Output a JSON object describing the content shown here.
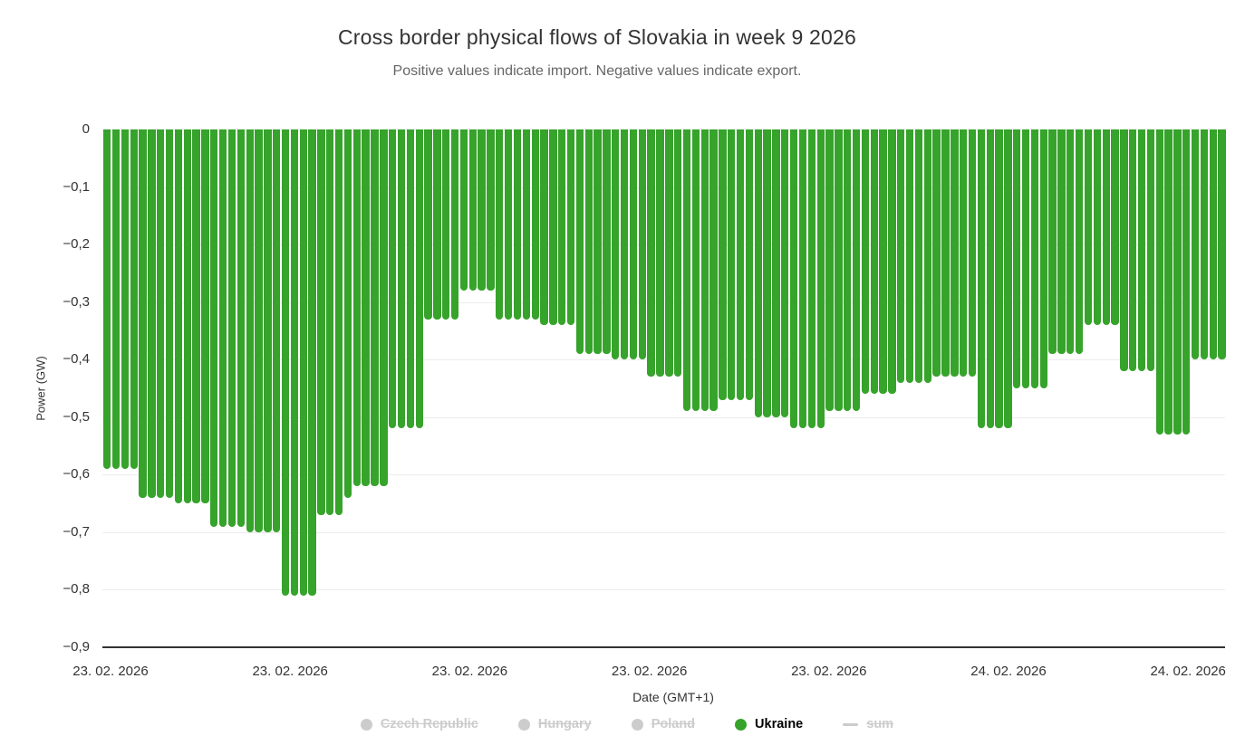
{
  "chart": {
    "title": "Cross border physical flows of Slovakia in week 9 2026",
    "subtitle": "Positive values indicate import. Negative values indicate export.",
    "y_axis_title": "Power (GW)",
    "x_axis_title": "Date (GMT+1)"
  },
  "chart_data": {
    "type": "bar",
    "title": "Cross border physical flows of Slovakia in week 9 2026",
    "subtitle": "Positive values indicate import. Negative values indicate export.",
    "xlabel": "Date (GMT+1)",
    "ylabel": "Power (GW)",
    "ylim": [
      -0.9,
      0
    ],
    "grid": true,
    "legend_position": "bottom",
    "y_tick_labels": [
      "0",
      "−0,1",
      "−0,2",
      "−0,3",
      "−0,4",
      "−0,5",
      "−0,6",
      "−0,7",
      "−0,8",
      "−0,9"
    ],
    "x_tick_labels": [
      "23. 02. 2026",
      "23. 02. 2026",
      "23. 02. 2026",
      "23. 02. 2026",
      "23. 02. 2026",
      "24. 02. 2026",
      "24. 02. 2026"
    ],
    "series": [
      {
        "name": "Ukraine",
        "color": "#36a32b",
        "unit": "GW",
        "values": [
          -0.59,
          -0.59,
          -0.59,
          -0.59,
          -0.64,
          -0.64,
          -0.64,
          -0.64,
          -0.65,
          -0.65,
          -0.65,
          -0.65,
          -0.69,
          -0.69,
          -0.69,
          -0.69,
          -0.7,
          -0.7,
          -0.7,
          -0.7,
          -0.81,
          -0.81,
          -0.81,
          -0.81,
          -0.67,
          -0.67,
          -0.67,
          -0.64,
          -0.62,
          -0.62,
          -0.62,
          -0.62,
          -0.52,
          -0.52,
          -0.52,
          -0.52,
          -0.33,
          -0.33,
          -0.33,
          -0.33,
          -0.28,
          -0.28,
          -0.28,
          -0.28,
          -0.33,
          -0.33,
          -0.33,
          -0.33,
          -0.33,
          -0.34,
          -0.34,
          -0.34,
          -0.34,
          -0.39,
          -0.39,
          -0.39,
          -0.39,
          -0.4,
          -0.4,
          -0.4,
          -0.4,
          -0.43,
          -0.43,
          -0.43,
          -0.43,
          -0.49,
          -0.49,
          -0.49,
          -0.49,
          -0.47,
          -0.47,
          -0.47,
          -0.47,
          -0.5,
          -0.5,
          -0.5,
          -0.5,
          -0.52,
          -0.52,
          -0.52,
          -0.52,
          -0.49,
          -0.49,
          -0.49,
          -0.49,
          -0.46,
          -0.46,
          -0.46,
          -0.46,
          -0.44,
          -0.44,
          -0.44,
          -0.44,
          -0.43,
          -0.43,
          -0.43,
          -0.43,
          -0.43,
          -0.52,
          -0.52,
          -0.52,
          -0.52,
          -0.45,
          -0.45,
          -0.45,
          -0.45,
          -0.39,
          -0.39,
          -0.39,
          -0.39,
          -0.34,
          -0.34,
          -0.34,
          -0.34,
          -0.42,
          -0.42,
          -0.42,
          -0.42,
          -0.53,
          -0.53,
          -0.53,
          -0.53,
          -0.4,
          -0.4,
          -0.4,
          -0.4
        ]
      }
    ]
  },
  "legend": {
    "items": [
      {
        "label": "Czech Republic",
        "enabled": false,
        "marker": "circle",
        "color": "#cccccc"
      },
      {
        "label": "Hungary",
        "enabled": false,
        "marker": "circle",
        "color": "#cccccc"
      },
      {
        "label": "Poland",
        "enabled": false,
        "marker": "circle",
        "color": "#cccccc"
      },
      {
        "label": "Ukraine",
        "enabled": true,
        "marker": "circle",
        "color": "#36a32b"
      },
      {
        "label": "sum",
        "enabled": false,
        "marker": "line",
        "color": "#cccccc"
      }
    ]
  },
  "colors": {
    "bar": "#36a32b",
    "gridline": "#ececec",
    "axis_line": "#333333",
    "disabled_legend": "#cccccc"
  }
}
